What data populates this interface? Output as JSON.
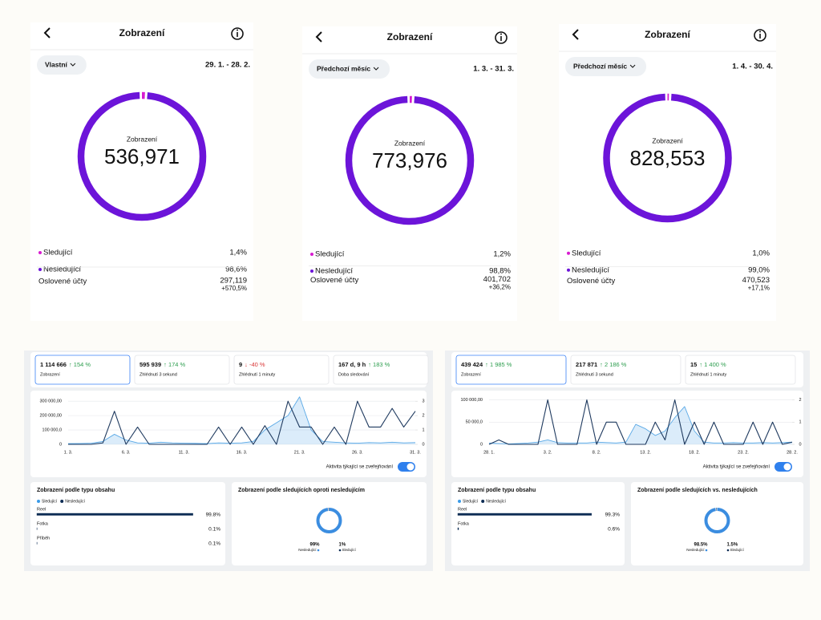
{
  "panels": [
    {
      "title": "Zobrazení",
      "period": "Vlastní",
      "range": "29. 1. - 28. 2.",
      "donut_label": "Zobrazení",
      "total": "536,971",
      "segments": [
        {
          "name": "Sledující",
          "value": 1.4,
          "label": "1,4%",
          "color": "#d81bd0"
        },
        {
          "name": "Nesledující",
          "value": 98.6,
          "label": "98,6%",
          "color": "#6c14d9"
        }
      ],
      "reach_label": "Oslovené účty",
      "reach": "297,119",
      "reach_change": "+570,5%"
    },
    {
      "title": "Zobrazení",
      "period": "Předchozí měsíc",
      "range": "1. 3. - 31. 3.",
      "donut_label": "Zobrazení",
      "total": "773,976",
      "segments": [
        {
          "name": "Sledující",
          "value": 1.2,
          "label": "1,2%",
          "color": "#d81bd0"
        },
        {
          "name": "Nesledující",
          "value": 98.8,
          "label": "98,8%",
          "color": "#6c14d9"
        }
      ],
      "reach_label": "Oslovené účty",
      "reach": "401,702",
      "reach_change": "+36,2%"
    },
    {
      "title": "Zobrazení",
      "period": "Předchozí měsíc",
      "range": "1. 4. - 30. 4.",
      "donut_label": "Zobrazení",
      "total": "828,553",
      "segments": [
        {
          "name": "Sledující",
          "value": 1.0,
          "label": "1,0%",
          "color": "#d81bd0"
        },
        {
          "name": "Nesledující",
          "value": 99.0,
          "label": "99,0%",
          "color": "#6c14d9"
        }
      ],
      "reach_label": "Oslovené účty",
      "reach": "470,523",
      "reach_change": "+17,1%"
    }
  ],
  "dashboards": [
    {
      "kpis": [
        {
          "value": "1 114 666",
          "change": "↑ 154 %",
          "change_color": "#2e9e4f",
          "label": "Zobrazení"
        },
        {
          "value": "595 939",
          "change": "↑ 174 %",
          "change_color": "#2e9e4f",
          "label": "Zhlédnutí 3 sekund"
        },
        {
          "value": "9",
          "change": "↓ -40 %",
          "change_color": "#d93636",
          "label": "Zhlédnutí 1 minuty"
        },
        {
          "value": "167 d, 9 h",
          "change": "↑ 183 %",
          "change_color": "#2e9e4f",
          "label": "Doba sledování"
        }
      ],
      "chart": {
        "type": "line",
        "categories": [
          "1. 3.",
          null,
          null,
          null,
          null,
          "6. 3.",
          null,
          null,
          null,
          null,
          "11. 3.",
          null,
          null,
          null,
          null,
          "16. 3.",
          null,
          null,
          null,
          null,
          "21. 3.",
          null,
          null,
          null,
          null,
          "26. 3.",
          null,
          null,
          null,
          null,
          "31. 3."
        ],
        "ylim": [
          0,
          340000
        ],
        "yticks": [
          0,
          {
            "value": 100000,
            "label": "100 000,0"
          },
          {
            "value": 200000,
            "label": "200 000,00"
          },
          {
            "value": 300000,
            "label": "300 000,00"
          }
        ],
        "y2lim": [
          0,
          3.4
        ],
        "y2ticks": [
          0,
          1,
          2,
          3
        ],
        "grid": true,
        "series": [
          {
            "color": "#5aa9e6",
            "values": [
              5000,
              6000,
              8000,
              20000,
              70000,
              30000,
              10000,
              8000,
              15000,
              10000,
              8000,
              7000,
              5000,
              10000,
              8000,
              10000,
              20000,
              100000,
              150000,
              200000,
              330000,
              100000,
              20000,
              15000,
              10000,
              8000,
              12000,
              10000,
              15000,
              10000,
              12000
            ]
          },
          {
            "color": "#1f3a5f",
            "axis": "y2",
            "values": [
              0,
              0,
              0,
              0.1,
              2.3,
              0,
              1.2,
              0,
              0,
              0,
              0,
              0,
              0,
              1.2,
              0,
              1.2,
              0,
              1.3,
              0,
              3.0,
              1.2,
              1.2,
              0,
              1.2,
              0,
              3.0,
              1.2,
              1.2,
              2.5,
              1.2,
              2.3
            ]
          }
        ]
      },
      "toggle_label": "Aktivita týkající se zveřejňování",
      "content_card": {
        "title": "Zobrazení podle typu obsahu",
        "legend": [
          {
            "name": "Sledující",
            "color": "#3b9be8"
          },
          {
            "name": "Nesledující",
            "color": "#0d2c54"
          }
        ],
        "bar_color": "#0d2c54",
        "rows": [
          {
            "name": "Reel",
            "value": 99.8,
            "label": "99.8%"
          },
          {
            "name": "Fotka",
            "value": 0.1,
            "label": "0.1%"
          },
          {
            "name": "Příběh",
            "value": 0.1,
            "label": "0.1%"
          }
        ]
      },
      "follower_card": {
        "title": "Zobrazení podle sledujících oproti nesledujícím",
        "segments": [
          {
            "name": "Nesledující",
            "value": 99,
            "label": "99%",
            "color": "#3b8de0"
          },
          {
            "name": "Sledující",
            "value": 1,
            "label": "1%",
            "color": "#0d2c54"
          }
        ]
      }
    },
    {
      "kpis": [
        {
          "value": "439 424",
          "change": "↑ 1 985 %",
          "change_color": "#2e9e4f",
          "label": "Zobrazení"
        },
        {
          "value": "217 871",
          "change": "↑ 2 186 %",
          "change_color": "#2e9e4f",
          "label": "Zhlédnutí 3 sekund"
        },
        {
          "value": "15",
          "change": "↑ 1 400 %",
          "change_color": "#2e9e4f",
          "label": "Zhlédnutí 1 minuty"
        }
      ],
      "chart": {
        "type": "line",
        "categories": [
          "28. 1.",
          null,
          null,
          null,
          null,
          null,
          "3. 2.",
          null,
          null,
          null,
          null,
          "8. 2.",
          null,
          null,
          null,
          null,
          "13. 2.",
          null,
          null,
          null,
          null,
          "18. 2.",
          null,
          null,
          null,
          null,
          "23. 2.",
          null,
          null,
          null,
          null,
          "28. 2."
        ],
        "ylim": [
          0,
          110000
        ],
        "yticks": [
          0,
          {
            "value": 50000,
            "label": "50 000,0"
          },
          {
            "value": 100000,
            "label": "100 000,00"
          }
        ],
        "y2lim": [
          0,
          2.2
        ],
        "y2ticks": [
          0,
          1,
          2
        ],
        "grid": true,
        "series": [
          {
            "color": "#5aa9e6",
            "values": [
              3000,
              2000,
              1000,
              2000,
              3000,
              5000,
              10000,
              4000,
              3000,
              3000,
              3000,
              5000,
              4000,
              3000,
              5000,
              45000,
              35000,
              20000,
              30000,
              60000,
              85000,
              30000,
              5000,
              3000,
              3000,
              4000,
              3000,
              3000,
              4000,
              3000,
              4000,
              5000
            ]
          },
          {
            "color": "#1f3a5f",
            "axis": "y2",
            "values": [
              0,
              0.2,
              0,
              0,
              0,
              0,
              2.0,
              0,
              0,
              0,
              2.0,
              0,
              1.0,
              1.0,
              0,
              0,
              0,
              1.0,
              0.2,
              2.0,
              0,
              1.0,
              0,
              1.0,
              0,
              0,
              0,
              1.0,
              0,
              1.0,
              0,
              0.1
            ]
          }
        ]
      },
      "toggle_label": "Aktivita týkající se zveřejňování",
      "content_card": {
        "title": "Zobrazení podle typu obsahu",
        "legend": [
          {
            "name": "Sledující",
            "color": "#3b9be8"
          },
          {
            "name": "Nesledující",
            "color": "#0d2c54"
          }
        ],
        "bar_color": "#0d2c54",
        "rows": [
          {
            "name": "Reel",
            "value": 99.3,
            "label": "99.3%"
          },
          {
            "name": "Fotka",
            "value": 0.6,
            "label": "0.6%"
          }
        ]
      },
      "follower_card": {
        "title": "Zobrazení podle sledujících vs. nesledujících",
        "segments": [
          {
            "name": "Nesledující",
            "value": 98.5,
            "label": "98.5%",
            "color": "#3b8de0"
          },
          {
            "name": "Sledující",
            "value": 1.5,
            "label": "1.5%",
            "color": "#0d2c54"
          }
        ]
      }
    }
  ]
}
